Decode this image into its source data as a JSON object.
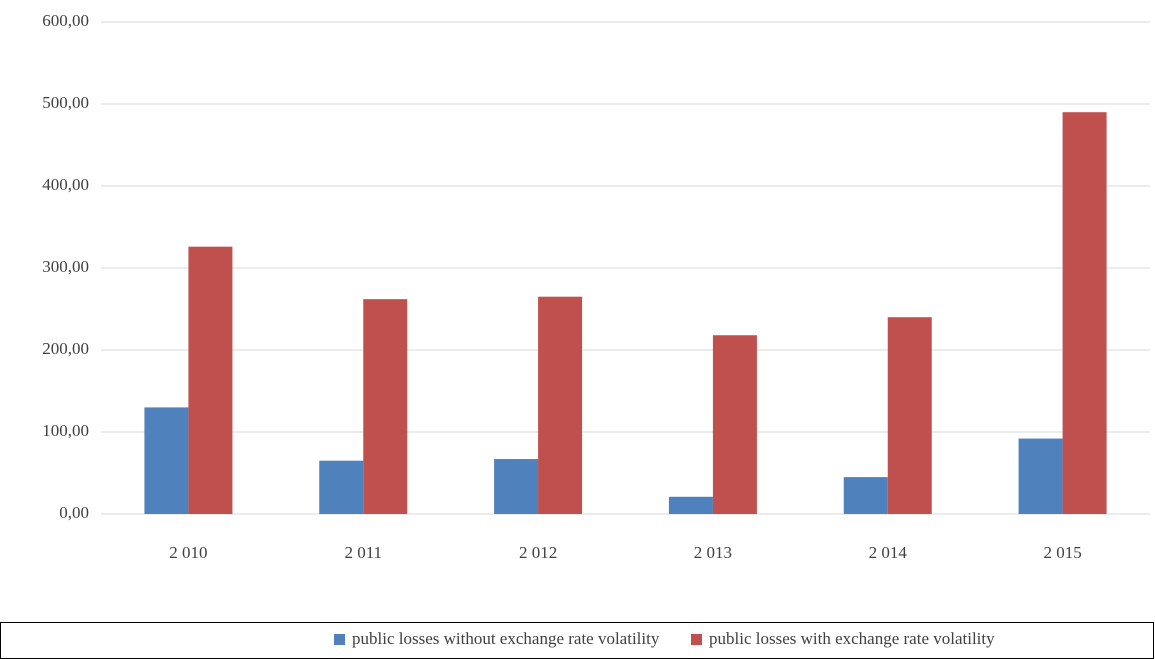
{
  "chart_data": {
    "type": "bar",
    "categories": [
      "2 010",
      "2 011",
      "2 012",
      "2 013",
      "2 014",
      "2 015"
    ],
    "series": [
      {
        "name": "public losses without exchange rate volatility",
        "color": "#4f81bd",
        "values": [
          130,
          65,
          67,
          21,
          45,
          92
        ]
      },
      {
        "name": "public losses with exchange rate volatility",
        "color": "#c0504d",
        "values": [
          326,
          262,
          265,
          218,
          240,
          490
        ]
      }
    ],
    "ylim": [
      0,
      600
    ],
    "yticks": [
      {
        "value": 0,
        "label": "0,00"
      },
      {
        "value": 100,
        "label": "100,00"
      },
      {
        "value": 200,
        "label": "200,00"
      },
      {
        "value": 300,
        "label": "300,00"
      },
      {
        "value": 400,
        "label": "400,00"
      },
      {
        "value": 500,
        "label": "500,00"
      },
      {
        "value": 600,
        "label": "600,00"
      }
    ],
    "grid": true,
    "legend": "bottom"
  }
}
